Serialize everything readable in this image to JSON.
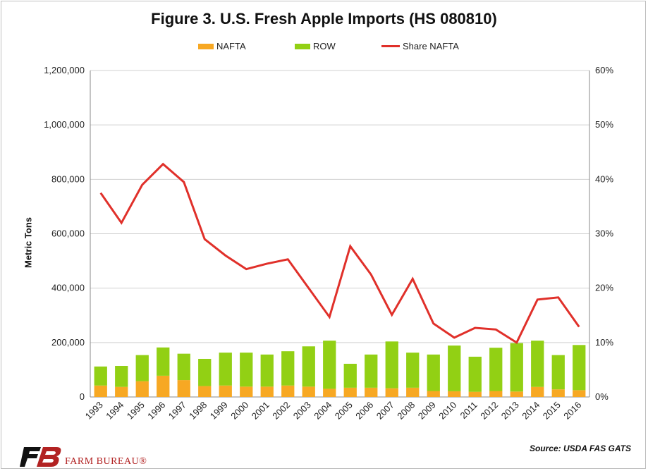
{
  "chart_data": {
    "type": "bar",
    "title": "Figure 3. U.S. Fresh Apple Imports (HS 080810)",
    "ylabel": "Metric Tons",
    "y2label": "",
    "categories": [
      "1993",
      "1994",
      "1995",
      "1996",
      "1997",
      "1998",
      "1999",
      "2000",
      "2001",
      "2002",
      "2003",
      "2004",
      "2005",
      "2006",
      "2007",
      "2008",
      "2009",
      "2010",
      "2011",
      "2012",
      "2013",
      "2014",
      "2015",
      "2016"
    ],
    "series": [
      {
        "name": "NAFTA",
        "kind": "stacked-bar",
        "color": "#f7a823",
        "values": [
          42000,
          37000,
          58000,
          78000,
          62000,
          40000,
          42000,
          38000,
          38000,
          42000,
          38000,
          30000,
          34000,
          34000,
          32000,
          34000,
          22000,
          21000,
          19000,
          22000,
          20000,
          37000,
          28000,
          25000
        ]
      },
      {
        "name": "ROW",
        "kind": "stacked-bar",
        "color": "#92d014",
        "values": [
          70000,
          77000,
          96000,
          104000,
          97000,
          100000,
          121000,
          125000,
          118000,
          126000,
          148000,
          177000,
          88000,
          122000,
          172000,
          129000,
          134000,
          168000,
          129000,
          159000,
          178000,
          170000,
          126000,
          166000
        ]
      },
      {
        "name": "Share NAFTA",
        "kind": "line",
        "axis": "right",
        "color": "#e0302a",
        "values": [
          0.375,
          0.32,
          0.39,
          0.428,
          0.395,
          0.29,
          0.26,
          0.235,
          0.245,
          0.253,
          0.2,
          0.147,
          0.277,
          0.225,
          0.151,
          0.217,
          0.135,
          0.109,
          0.127,
          0.124,
          0.1,
          0.179,
          0.183,
          0.129
        ]
      }
    ],
    "ylim": [
      0,
      1200000
    ],
    "yticks": [
      "0",
      "200,000",
      "400,000",
      "600,000",
      "800,000",
      "1,000,000",
      "1,200,000"
    ],
    "y2lim": [
      0,
      0.6
    ],
    "y2ticks": [
      "0%",
      "10%",
      "20%",
      "30%",
      "40%",
      "50%",
      "60%"
    ],
    "grid": true,
    "legend": "top-center"
  },
  "legend": {
    "nafta": "NAFTA",
    "row": "ROW",
    "share": "Share NAFTA"
  },
  "source": "Source: USDA FAS GATS",
  "logo": {
    "text": "FARM BUREAU®"
  },
  "colors": {
    "nafta": "#f7a823",
    "row": "#92d014",
    "share": "#e0302a",
    "grid": "#d0d0d0",
    "logo": "#b22222"
  }
}
